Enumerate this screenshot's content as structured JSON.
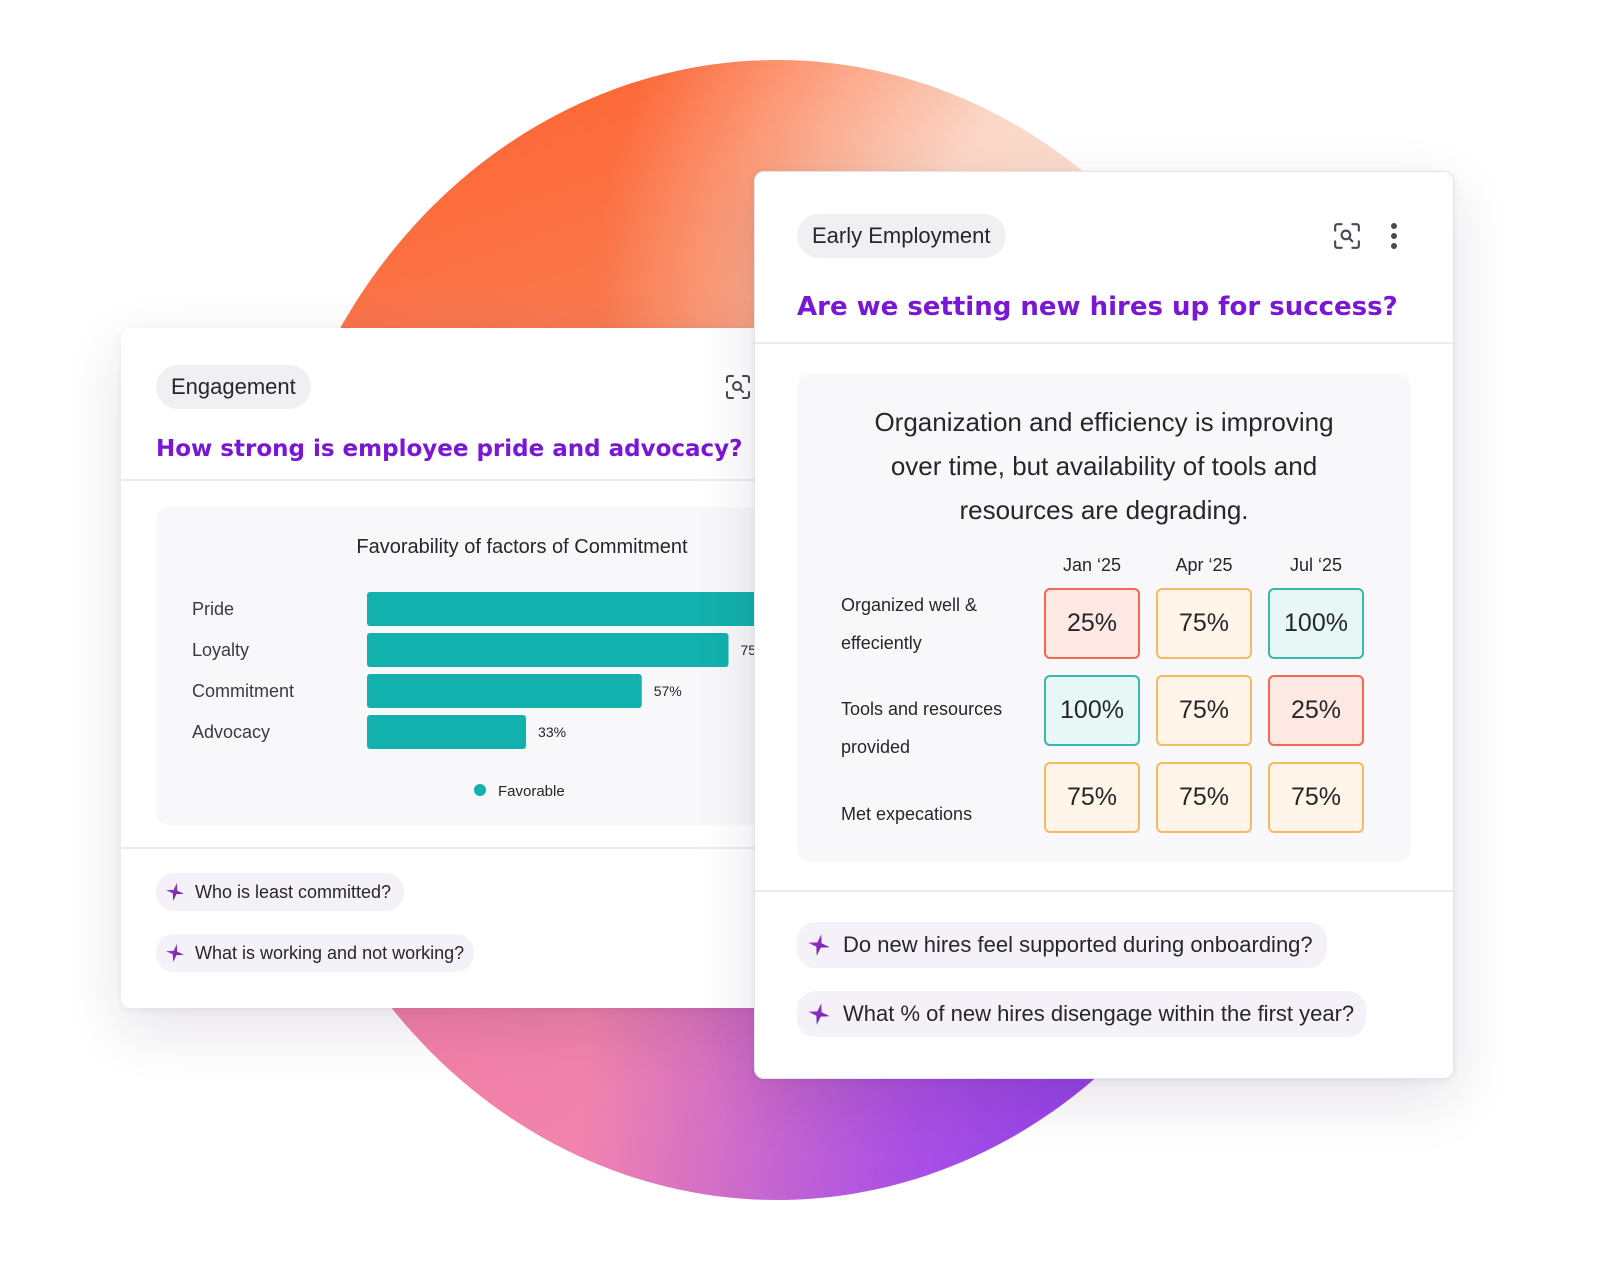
{
  "colors": {
    "accent_purple": "#7a16d6",
    "teal_bar": "#13b1ad",
    "low_border": "#ee6a52",
    "mid_border": "#f6b965",
    "high_border": "#3bb6ad"
  },
  "left_card": {
    "tag": "Engagement",
    "question": "How strong is employee pride and advocacy?",
    "icons": [
      "scan-search-icon"
    ],
    "suggestions": [
      "Who is least committed?",
      "What is working and not working?"
    ]
  },
  "right_card": {
    "tag": "Early Employment",
    "question": "Are we setting new hires up for success?",
    "icons": [
      "scan-search-icon",
      "more-vertical-icon"
    ],
    "insight": [
      "Organization and efficiency is improving",
      "over time, but availability of tools and",
      "resources are degrading."
    ],
    "suggestions": [
      "Do new hires feel supported during onboarding?",
      "What % of new hires disengage within the first year?"
    ]
  },
  "chart_data": [
    {
      "type": "bar",
      "orientation": "horizontal",
      "title": "Favorability of factors of Commitment",
      "categories": [
        "Pride",
        "Loyalty",
        "Commitment",
        "Advocacy"
      ],
      "series": [
        {
          "name": "Favorable",
          "values": [
            100,
            75,
            57,
            33
          ]
        }
      ],
      "value_labels": [
        "",
        "75",
        "57%",
        "33%"
      ],
      "legend": "bottom-center",
      "note": "bars for Pride and Loyalty are cropped at the card edge"
    },
    {
      "type": "table",
      "columns": [
        "Jan ‘25",
        "Apr ‘25",
        "Jul ‘25"
      ],
      "rows": [
        {
          "label": [
            "Organized well &",
            "effeciently"
          ],
          "values": [
            "25%",
            "75%",
            "100%"
          ],
          "levels": [
            "low",
            "mid",
            "high"
          ]
        },
        {
          "label": [
            "Tools and resources",
            "provided"
          ],
          "values": [
            "100%",
            "75%",
            "25%"
          ],
          "levels": [
            "high",
            "mid",
            "low"
          ]
        },
        {
          "label": [
            "Met expecations"
          ],
          "values": [
            "75%",
            "75%",
            "75%"
          ],
          "levels": [
            "mid",
            "mid",
            "mid"
          ]
        }
      ]
    }
  ]
}
